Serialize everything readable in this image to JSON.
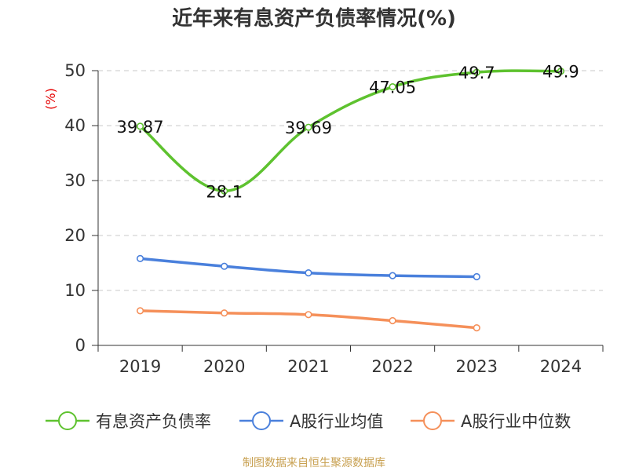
{
  "chart_data": {
    "type": "line",
    "title": "近年来有息资产负债率情况(%)",
    "unit_label": "(%)",
    "categories": [
      "2019",
      "2020",
      "2021",
      "2022",
      "2023",
      "2024"
    ],
    "ylim": [
      0,
      50
    ],
    "yticks": [
      0,
      10,
      20,
      30,
      40,
      50
    ],
    "grid": true,
    "legend_position": "bottom",
    "series": [
      {
        "name": "有息资产负债率",
        "color": "#5ec22f",
        "values": [
          39.87,
          28.1,
          39.69,
          47.05,
          49.7,
          49.9
        ],
        "labels": [
          "39.87",
          "28.1",
          "39.69",
          "47.05",
          "49.7",
          "49.9"
        ],
        "show_labels": true
      },
      {
        "name": "A股行业均值",
        "color": "#4a80dc",
        "values": [
          15.8,
          14.4,
          13.2,
          12.7,
          12.5,
          null
        ],
        "show_labels": false
      },
      {
        "name": "A股行业中位数",
        "color": "#f5905a",
        "values": [
          6.3,
          5.9,
          5.6,
          4.5,
          3.2,
          null
        ],
        "show_labels": false
      }
    ]
  },
  "footer": {
    "source": "制图数据来自恒生聚源数据库"
  }
}
